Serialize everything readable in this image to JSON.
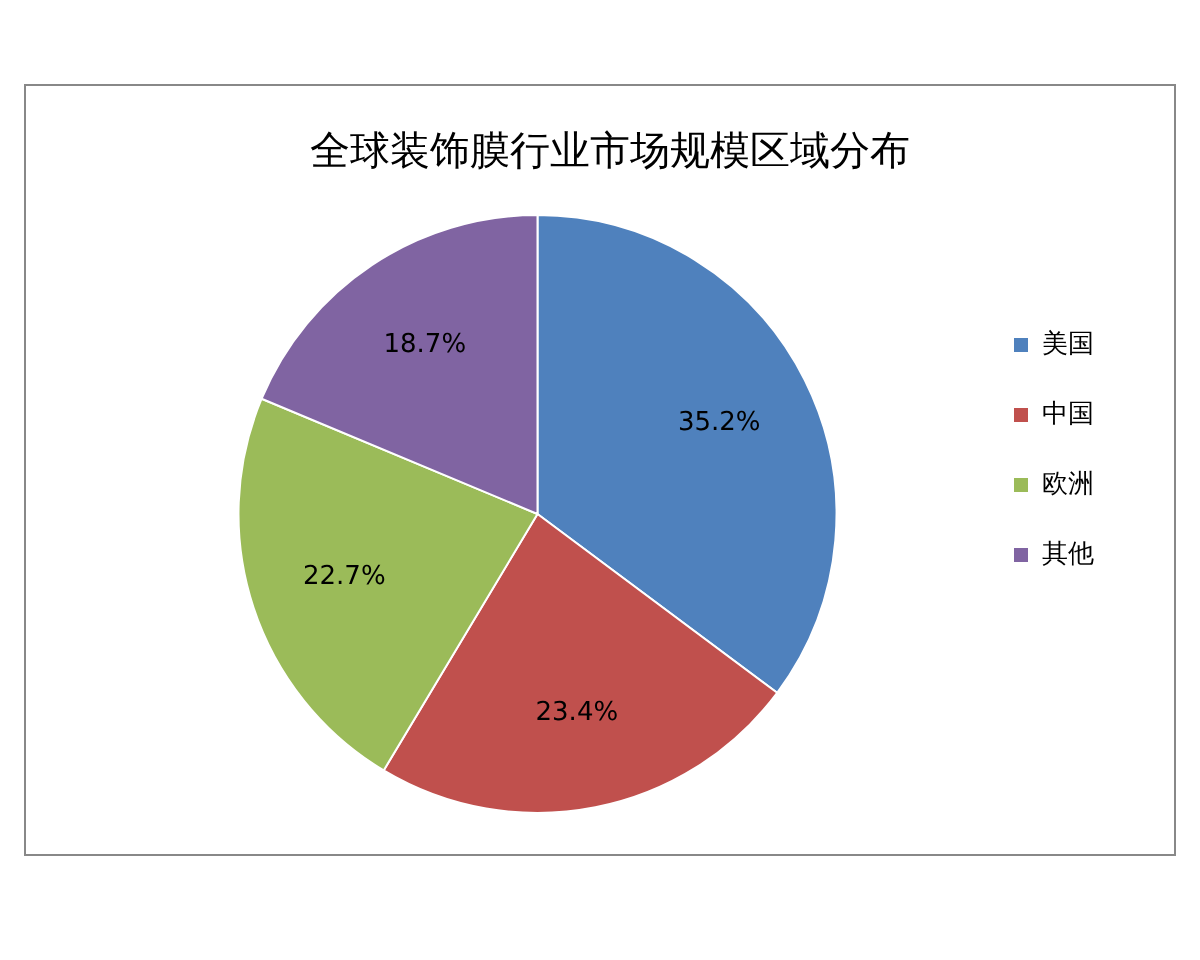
{
  "chart_data": {
    "type": "pie",
    "title": "全球装饰膜行业市场规模区域分布",
    "categories": [
      "美国",
      "中国",
      "欧洲",
      "其他"
    ],
    "values": [
      35.2,
      23.4,
      22.7,
      18.7
    ],
    "colors": [
      "#4f81bd",
      "#c0504d",
      "#9bbb59",
      "#8064a2"
    ],
    "value_labels": [
      "35.2%",
      "23.4%",
      "22.7%",
      "18.7%"
    ],
    "legend": "right"
  }
}
